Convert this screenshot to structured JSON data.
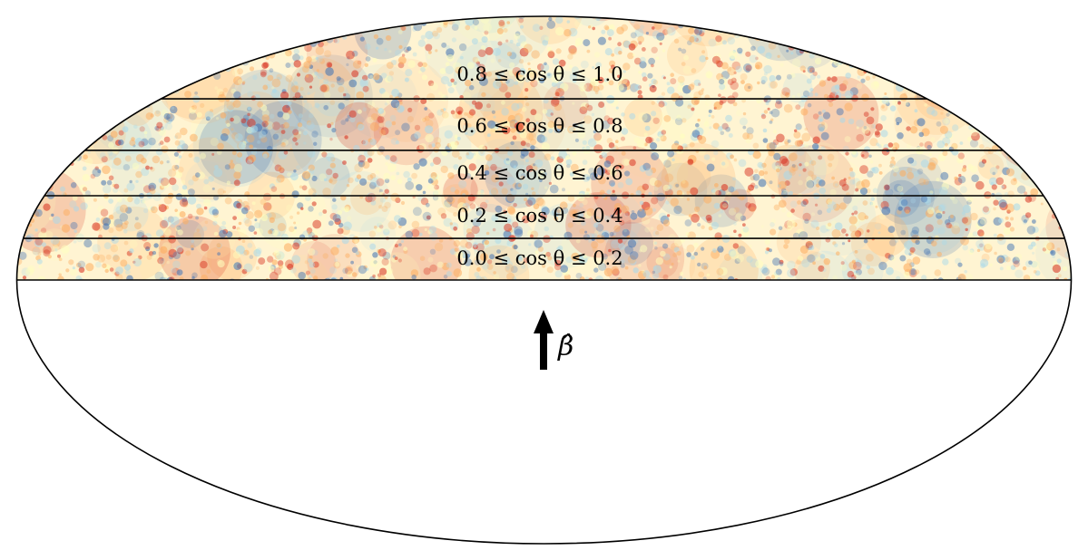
{
  "figure": {
    "projection": "Mollweide",
    "map_style": "temperature anisotropy field, diverging red–yellow–blue colormap",
    "colors": {
      "warm": "#d7301f",
      "warm_light": "#fdae61",
      "neutral": "#ffffbf",
      "cool_light": "#abd9e9",
      "cool": "#4575b4",
      "outline": "#000000",
      "background": "#ffffff"
    },
    "band_edges": [
      0.0,
      0.2,
      0.4,
      0.6,
      0.8,
      1.0
    ],
    "bands": [
      {
        "label": "0.8 ≤ cos θ ≤ 1.0",
        "min": 0.8,
        "max": 1.0
      },
      {
        "label": "0.6 ≤ cos θ ≤ 0.8",
        "min": 0.6,
        "max": 0.8
      },
      {
        "label": "0.4 ≤ cos θ ≤ 0.6",
        "min": 0.4,
        "max": 0.6
      },
      {
        "label": "0.2 ≤ cos θ ≤ 0.4",
        "min": 0.2,
        "max": 0.4
      },
      {
        "label": "0.0 ≤ cos θ ≤ 0.2",
        "min": 0.0,
        "max": 0.2
      }
    ],
    "masked_region": "southern hemisphere (cos θ < 0), blank",
    "arrow": {
      "label": "β̂",
      "direction": "up",
      "icon": "arrow-up-icon"
    }
  }
}
